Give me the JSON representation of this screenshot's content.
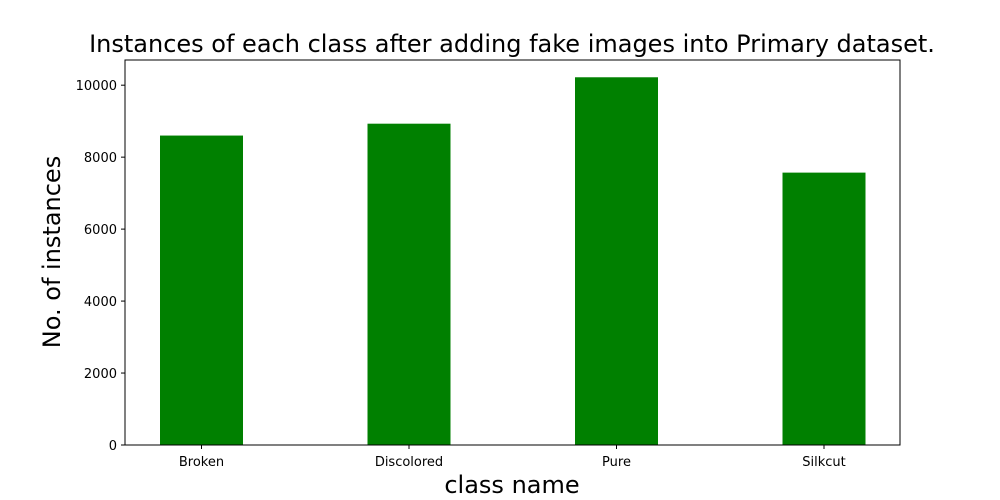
{
  "chart_data": {
    "type": "bar",
    "title": "Instances of each class after adding fake images into Primary dataset.",
    "xlabel": "class name",
    "ylabel": "No. of instances",
    "categories": [
      "Broken",
      "Discolored",
      "Pure",
      "Silkcut"
    ],
    "values": [
      8600,
      8930,
      10220,
      7570
    ],
    "ylim": [
      0,
      10700
    ],
    "yticks": [
      0,
      2000,
      4000,
      6000,
      8000,
      10000
    ],
    "ytick_labels": [
      "0",
      "2000",
      "4000",
      "6000",
      "8000",
      "10000"
    ],
    "bar_color": "#008000",
    "grid": false
  }
}
